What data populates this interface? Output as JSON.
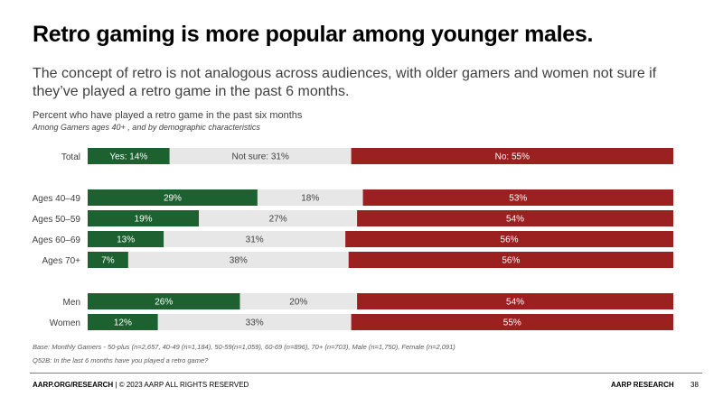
{
  "title": "Retro gaming is more popular among younger males.",
  "subtitle": "The concept of retro is not analogous across audiences, with older gamers and women not sure if they’ve played a retro game in the past 6 months.",
  "footnotes": {
    "base": "Base: Monthly Gamers - 50-plus (n=2,657, 40-49 (n=1,184), 50-59(n=1,059), 60-69 (n=896), 70+ (n=703), Male (n=1,750), Female (n=2,091)",
    "question": "Q52B: In the last 6 months have you played a retro game?"
  },
  "footer": {
    "site": "AARP.ORG/RESEARCH",
    "rights": "| © 2023 AARP ALL RIGHTS RESERVED",
    "brand": "AARP RESEARCH",
    "page": "38"
  },
  "colors": {
    "yes": "#1e6131",
    "not_sure": "#e7e7e7",
    "no": "#9b2020"
  },
  "chart_data": {
    "type": "bar",
    "orientation": "horizontal",
    "stacked": true,
    "title": "Percent who have played a retro game in the past six months",
    "subtitle": "Among Gamers ages 40+ , and by demographic characteristics",
    "categories": [
      "Total",
      "Ages 40–49",
      "Ages 50–59",
      "Ages 60–69",
      "Ages 70+",
      "Men",
      "Women"
    ],
    "series": [
      {
        "name": "Yes",
        "values": [
          14,
          29,
          19,
          13,
          7,
          26,
          12
        ]
      },
      {
        "name": "Not sure",
        "values": [
          31,
          18,
          27,
          31,
          38,
          20,
          33
        ]
      },
      {
        "name": "No",
        "values": [
          55,
          53,
          54,
          56,
          56,
          54,
          55
        ]
      }
    ],
    "labels": [
      [
        "Yes: 14%",
        "Not sure: 31%",
        "No: 55%"
      ],
      [
        "29%",
        "18%",
        "53%"
      ],
      [
        "19%",
        "27%",
        "54%"
      ],
      [
        "13%",
        "31%",
        "56%"
      ],
      [
        "7%",
        "38%",
        "56%"
      ],
      [
        "26%",
        "20%",
        "54%"
      ],
      [
        "12%",
        "33%",
        "55%"
      ]
    ],
    "xlim": [
      0,
      100
    ],
    "unit": "%",
    "grid": false,
    "legend": "none"
  }
}
